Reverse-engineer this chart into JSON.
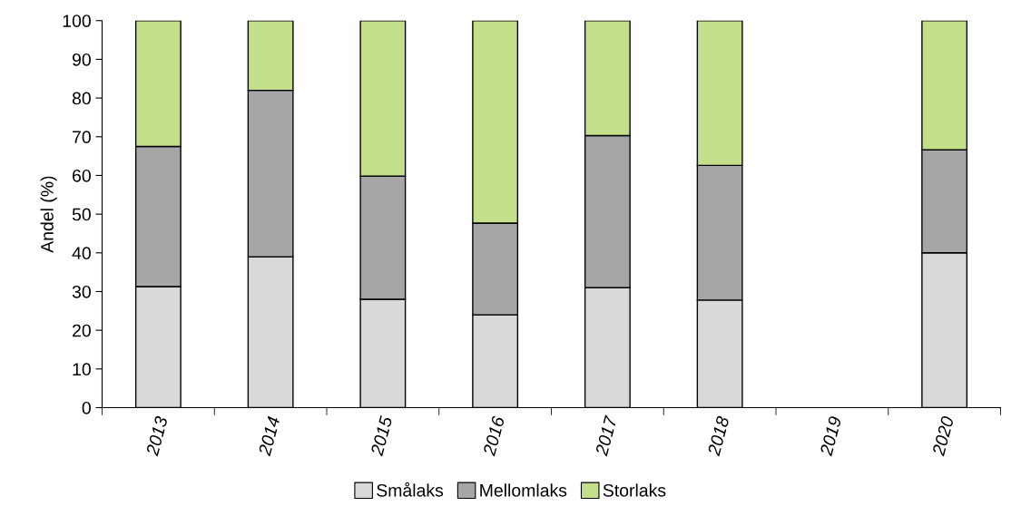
{
  "chart_data": {
    "type": "bar",
    "stacked": true,
    "ylabel": "Andel (%)",
    "categories": [
      "2013",
      "2014",
      "2015",
      "2016",
      "2017",
      "2018",
      "2019",
      "2020"
    ],
    "series": [
      {
        "name": "Smålaks",
        "color": "#d9d9d9",
        "values": [
          31.3,
          39,
          28,
          24,
          31,
          27.8,
          null,
          40
        ]
      },
      {
        "name": "Mellomlaks",
        "color": "#a6a6a6",
        "values": [
          36.2,
          43,
          31.8,
          23.7,
          39.3,
          34.8,
          null,
          26.6
        ]
      },
      {
        "name": "Storlaks",
        "color": "#c4df8a",
        "values": [
          32.5,
          18,
          40.2,
          52.3,
          29.7,
          37.4,
          null,
          33.4
        ]
      }
    ],
    "ylim": [
      0,
      100
    ],
    "yticks": [
      0,
      10,
      20,
      30,
      40,
      50,
      60,
      70,
      80,
      90,
      100
    ],
    "grid": false,
    "legend": "bottom"
  }
}
